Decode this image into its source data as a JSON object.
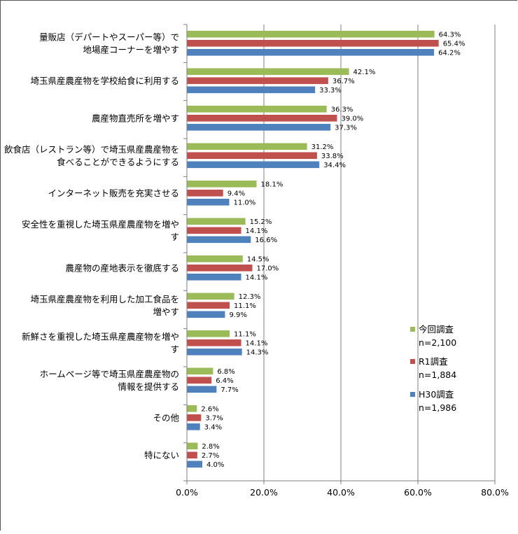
{
  "chart_data": {
    "type": "bar",
    "orientation": "horizontal",
    "categories": [
      [
        "量販店（デパートやスーパー等）で",
        "地場産コーナーを増やす"
      ],
      [
        "埼玉県産農産物を学校給食に利用する"
      ],
      [
        "農産物直売所を増やす"
      ],
      [
        "飲食店（レストラン等）で埼玉県産農産物を",
        "食べることができるようにする"
      ],
      [
        "インターネット販売を充実させる"
      ],
      [
        "安全性を重視した埼玉県産農産物を増や",
        "す"
      ],
      [
        "農産物の産地表示を徹底する"
      ],
      [
        "埼玉県産農産物を利用した加工食品を",
        "増やす"
      ],
      [
        "新鮮さを重視した埼玉県産農産物を増や",
        "す"
      ],
      [
        "ホームページ等で埼玉県産農産物の",
        "情報を提供する"
      ],
      [
        "その他"
      ],
      [
        "特にない"
      ]
    ],
    "series": [
      {
        "name": "今回調査",
        "n_label": "n=2,100",
        "color": "#9BBB59",
        "values": [
          64.3,
          42.1,
          36.3,
          31.2,
          18.1,
          15.2,
          14.5,
          12.3,
          11.1,
          6.8,
          2.6,
          2.8
        ],
        "value_labels": [
          "64.3%",
          "42.1%",
          "36.3%",
          "31.2%",
          "18.1%",
          "15.2%",
          "14.5%",
          "12.3%",
          "11.1%",
          "6.8%",
          "2.6%",
          "2.8%"
        ]
      },
      {
        "name": "R1調査",
        "n_label": "n=1,884",
        "color": "#C0504D",
        "values": [
          65.4,
          36.7,
          39.0,
          33.8,
          9.4,
          14.1,
          17.0,
          11.1,
          14.1,
          6.4,
          3.7,
          2.7
        ],
        "value_labels": [
          "65.4%",
          "36.7%",
          "39.0%",
          "33.8%",
          "9.4%",
          "14.1%",
          "17.0%",
          "11.1%",
          "14.1%",
          "6.4%",
          "3.7%",
          "2.7%"
        ]
      },
      {
        "name": "H30調査",
        "n_label": "n=1,986",
        "color": "#4F81BD",
        "values": [
          64.2,
          33.3,
          37.3,
          34.4,
          11.0,
          16.6,
          14.1,
          9.9,
          14.3,
          7.7,
          3.4,
          4.0
        ],
        "value_labels": [
          "64.2%",
          "33.3%",
          "37.3%",
          "34.4%",
          "11.0%",
          "16.6%",
          "14.1%",
          "9.9%",
          "14.3%",
          "7.7%",
          "3.4%",
          "4.0%"
        ]
      }
    ],
    "xlim": [
      0,
      80
    ],
    "x_ticks": [
      0,
      20,
      40,
      60,
      80
    ],
    "x_tick_labels": [
      "0.0%",
      "20.0%",
      "40.0%",
      "60.0%",
      "80.0%"
    ],
    "grid": "vertical",
    "legend_position": "right"
  }
}
